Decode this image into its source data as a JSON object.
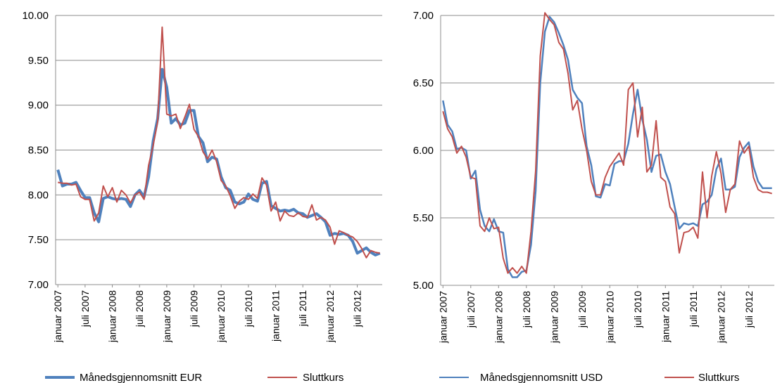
{
  "chart_data": [
    {
      "type": "line",
      "title": "",
      "xlabel": "",
      "ylabel": "",
      "ylim": [
        7.0,
        10.0
      ],
      "y_ticks": [
        "7.00",
        "7.50",
        "8.00",
        "8.50",
        "9.00",
        "9.50",
        "10.00"
      ],
      "x_tick_labels": [
        "januar 2007",
        "juli 2007",
        "januar 2008",
        "juli 2008",
        "januar 2009",
        "juli 2009",
        "januar 2010",
        "juli 2010",
        "januar 2011",
        "juli 2011",
        "januar 2012",
        "juli 2012"
      ],
      "grid": "horizontal",
      "legend_position": "bottom",
      "months": 72,
      "series": [
        {
          "name": "Månedsgjennomsnitt EUR",
          "color": "#4f81bd",
          "values": [
            8.28,
            8.1,
            8.12,
            8.12,
            8.14,
            8.05,
            7.97,
            7.97,
            7.8,
            7.7,
            7.96,
            7.98,
            7.96,
            7.95,
            7.96,
            7.95,
            7.87,
            8.0,
            8.05,
            7.98,
            8.2,
            8.6,
            8.85,
            9.4,
            9.2,
            8.8,
            8.85,
            8.78,
            8.8,
            8.94,
            8.94,
            8.65,
            8.58,
            8.37,
            8.42,
            8.4,
            8.2,
            8.08,
            8.05,
            7.92,
            7.9,
            7.92,
            8.01,
            7.95,
            7.93,
            8.13,
            8.15,
            7.88,
            7.85,
            7.82,
            7.83,
            7.82,
            7.84,
            7.8,
            7.79,
            7.75,
            7.77,
            7.79,
            7.75,
            7.7,
            7.55,
            7.57,
            7.56,
            7.57,
            7.55,
            7.48,
            7.35,
            7.38,
            7.41,
            7.36,
            7.33,
            7.35
          ]
        },
        {
          "name": "Sluttkurs",
          "color": "#c0504d",
          "values": [
            8.14,
            8.13,
            8.13,
            8.11,
            8.12,
            7.98,
            7.95,
            7.95,
            7.71,
            7.8,
            8.1,
            7.98,
            8.08,
            7.92,
            8.05,
            8.0,
            7.91,
            8.0,
            8.03,
            7.95,
            8.33,
            8.55,
            8.82,
            9.87,
            8.9,
            8.88,
            8.9,
            8.74,
            8.87,
            9.01,
            8.73,
            8.65,
            8.48,
            8.4,
            8.5,
            8.37,
            8.16,
            8.1,
            7.99,
            7.85,
            7.93,
            7.97,
            7.95,
            8.01,
            7.96,
            8.19,
            8.11,
            7.82,
            7.92,
            7.71,
            7.82,
            7.77,
            7.76,
            7.8,
            7.76,
            7.75,
            7.89,
            7.72,
            7.75,
            7.72,
            7.64,
            7.45,
            7.6,
            7.58,
            7.55,
            7.53,
            7.48,
            7.4,
            7.3,
            7.38,
            7.36,
            7.35
          ]
        }
      ]
    },
    {
      "type": "line",
      "title": "",
      "xlabel": "",
      "ylabel": "",
      "ylim": [
        5.0,
        7.0
      ],
      "y_ticks": [
        "5.00",
        "5.50",
        "6.00",
        "6.50",
        "7.00"
      ],
      "x_tick_labels": [
        "januar 2007",
        "juli 2007",
        "januar 2008",
        "juli 2008",
        "januar 2009",
        "juli 2009",
        "januar 2010",
        "juli 2010",
        "januar 2011",
        "juli 2011",
        "januar 2012",
        "juli 2012"
      ],
      "grid": "horizontal",
      "legend_position": "bottom",
      "months": 72,
      "series": [
        {
          "name": "Månedsgjennomsnitt USD",
          "color": "#4f81bd",
          "values": [
            6.37,
            6.19,
            6.14,
            6.01,
            6.02,
            6.0,
            5.79,
            5.85,
            5.56,
            5.44,
            5.4,
            5.49,
            5.4,
            5.39,
            5.12,
            5.06,
            5.06,
            5.1,
            5.11,
            5.3,
            5.7,
            6.5,
            6.88,
            6.99,
            6.95,
            6.87,
            6.78,
            6.67,
            6.45,
            6.39,
            6.35,
            6.03,
            5.89,
            5.66,
            5.65,
            5.75,
            5.74,
            5.9,
            5.92,
            5.92,
            6.05,
            6.27,
            6.45,
            6.23,
            6.08,
            5.84,
            5.96,
            5.97,
            5.84,
            5.75,
            5.58,
            5.42,
            5.46,
            5.45,
            5.46,
            5.44,
            5.6,
            5.62,
            5.67,
            5.86,
            5.94,
            5.71,
            5.71,
            5.73,
            5.95,
            6.02,
            6.06,
            5.88,
            5.77,
            5.72,
            5.72,
            5.72
          ]
        },
        {
          "name": "Sluttkurs",
          "color": "#c0504d",
          "values": [
            6.29,
            6.16,
            6.1,
            5.98,
            6.03,
            5.95,
            5.8,
            5.79,
            5.44,
            5.4,
            5.5,
            5.42,
            5.43,
            5.2,
            5.09,
            5.13,
            5.09,
            5.14,
            5.09,
            5.4,
            5.85,
            6.7,
            7.02,
            6.97,
            6.93,
            6.8,
            6.75,
            6.57,
            6.3,
            6.37,
            6.16,
            6.0,
            5.77,
            5.67,
            5.67,
            5.8,
            5.88,
            5.93,
            5.98,
            5.89,
            6.45,
            6.5,
            6.1,
            6.32,
            5.84,
            5.89,
            6.22,
            5.8,
            5.77,
            5.58,
            5.53,
            5.24,
            5.39,
            5.4,
            5.43,
            5.35,
            5.84,
            5.5,
            5.81,
            5.99,
            5.83,
            5.54,
            5.71,
            5.75,
            6.07,
            5.98,
            6.03,
            5.8,
            5.71,
            5.69,
            5.69,
            5.68
          ]
        }
      ]
    }
  ]
}
